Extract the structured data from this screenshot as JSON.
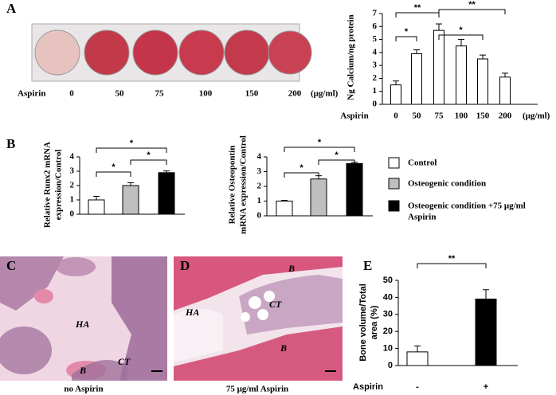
{
  "panels": [
    "A",
    "B",
    "C",
    "D",
    "E"
  ],
  "plate": {
    "label": "Aspirin",
    "doses": [
      "0",
      "50",
      "75",
      "100",
      "150",
      "200"
    ],
    "unit": "(μg/ml)"
  },
  "histology": [
    {
      "caption": "no Aspirin",
      "labels": [
        "HA",
        "B",
        "CT"
      ]
    },
    {
      "caption": "75 μg/ml Aspirin",
      "labels": [
        "HA",
        "B",
        "CT",
        "B"
      ]
    }
  ],
  "legend": [
    {
      "name": [
        "Control"
      ],
      "color": "#ffffff"
    },
    {
      "name": [
        "Osteogenic condition"
      ],
      "color": "#bfbfbf"
    },
    {
      "name": [
        "Osteogenic condition +75 μg/ml",
        "Aspirin"
      ],
      "color": "#000000"
    }
  ],
  "chart_data": [
    {
      "type": "bar",
      "ylabel": [
        "Ng Calcium/ng protein"
      ],
      "xlabel": "Aspirin",
      "xunit": "(μg/ml)",
      "categories": [
        "0",
        "50",
        "75",
        "100",
        "150",
        "200"
      ],
      "values": [
        1.5,
        3.9,
        5.7,
        4.5,
        3.5,
        2.1
      ],
      "errors": [
        0.3,
        0.3,
        0.5,
        0.5,
        0.3,
        0.3
      ],
      "color": "#ffffff",
      "ylim": [
        0,
        7
      ],
      "yticks": [
        0,
        1,
        2,
        3,
        4,
        5,
        6,
        7
      ],
      "annotations": [
        "*",
        "**",
        "*",
        "**"
      ]
    },
    {
      "type": "bar",
      "ylabel": [
        "Relative Runx2 mRNA",
        "expression/Control"
      ],
      "values": [
        1.0,
        2.0,
        2.9
      ],
      "errors": [
        0.25,
        0.2,
        0.12
      ],
      "ylim": [
        0,
        4
      ],
      "yticks": [
        0,
        1,
        2,
        3,
        4
      ],
      "annotations": [
        "*",
        "*",
        "*"
      ]
    },
    {
      "type": "bar",
      "ylabel": [
        "Relative Osteopontin",
        "mRNA expression/Control"
      ],
      "values": [
        1.0,
        2.5,
        3.55
      ],
      "errors": [
        0.05,
        0.22,
        0.08
      ],
      "ylim": [
        0,
        4
      ],
      "yticks": [
        0,
        1,
        2,
        3,
        4
      ],
      "annotations": [
        "*",
        "*",
        "*"
      ]
    },
    {
      "type": "bar",
      "ylabel": [
        "Bone volume/Total",
        "area (%)"
      ],
      "xlabel": "Aspirin",
      "categories": [
        "-",
        "+"
      ],
      "values": [
        8,
        39
      ],
      "errors": [
        3.5,
        5.5
      ],
      "color": "#000000",
      "colors": [
        "#ffffff",
        "#000000"
      ],
      "ylim": [
        0,
        50
      ],
      "yticks": [
        0,
        10,
        20,
        30,
        40,
        50
      ],
      "annotations": [
        "**"
      ]
    }
  ]
}
